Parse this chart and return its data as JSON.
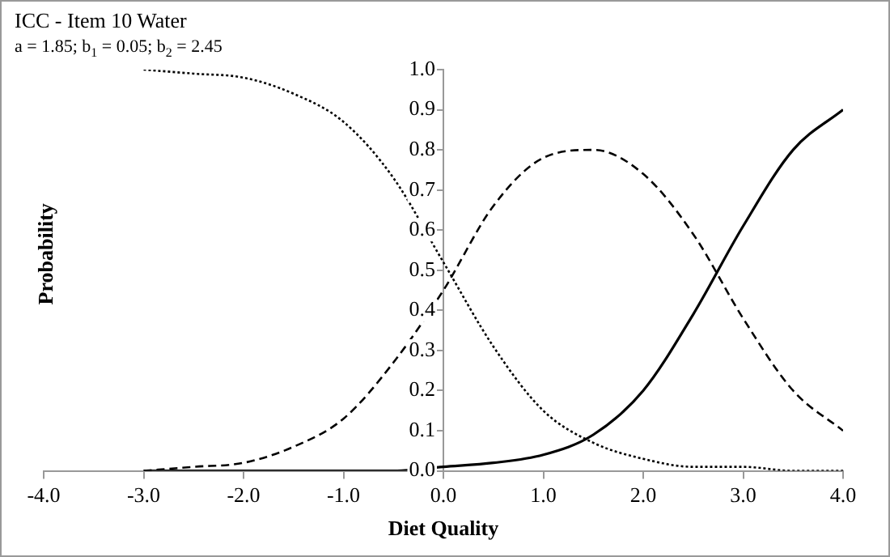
{
  "chart_data": {
    "type": "line",
    "title": "ICC - Item 10  Water",
    "subtitle": "a = 1.85; b$_{1}$ = 0.05; b$_{2}$ = 2.45",
    "xlabel": "Diet Quality",
    "ylabel": "Probability",
    "x": [
      -3,
      -2.5,
      -2,
      -1.5,
      -1,
      -0.5,
      0,
      0.5,
      1,
      1.5,
      2,
      2.5,
      3,
      3.5,
      4
    ],
    "series": [
      {
        "color": "#000000",
        "line_style": "dotted",
        "values": [
          1.0,
          0.99,
          0.98,
          0.94,
          0.87,
          0.73,
          0.52,
          0.31,
          0.15,
          0.07,
          0.03,
          0.01,
          0.01,
          0.0,
          0.0
        ]
      },
      {
        "color": "#000000",
        "line_style": "dashed",
        "values": [
          0.0,
          0.01,
          0.02,
          0.06,
          0.13,
          0.27,
          0.45,
          0.66,
          0.78,
          0.8,
          0.74,
          0.59,
          0.38,
          0.2,
          0.1
        ]
      },
      {
        "color": "#000000",
        "line_style": "solid",
        "values": [
          0.0,
          0.0,
          0.0,
          0.0,
          0.0,
          0.0,
          0.01,
          0.02,
          0.04,
          0.09,
          0.2,
          0.39,
          0.61,
          0.8,
          0.9
        ]
      }
    ],
    "xlim": [
      -4,
      4
    ],
    "xticks": [
      {
        "value": -4,
        "label": "-4.0"
      },
      {
        "value": -3,
        "label": "-3.0"
      },
      {
        "value": -2,
        "label": "-2.0"
      },
      {
        "value": -1,
        "label": "-1.0"
      },
      {
        "value": 0,
        "label": "0.0"
      },
      {
        "value": 1,
        "label": "1.0"
      },
      {
        "value": 2,
        "label": "2.0"
      },
      {
        "value": 3,
        "label": "3.0"
      },
      {
        "value": 4,
        "label": "4.0"
      }
    ],
    "ylim": [
      0,
      1
    ],
    "yticks": [
      {
        "value": 0,
        "label": "0.0"
      },
      {
        "value": 0.1,
        "label": "0.1"
      },
      {
        "value": 0.2,
        "label": "0.2"
      },
      {
        "value": 0.3,
        "label": "0.3"
      },
      {
        "value": 0.4,
        "label": "0.4"
      },
      {
        "value": 0.5,
        "label": "0.5"
      },
      {
        "value": 0.6,
        "label": "0.6"
      },
      {
        "value": 0.7,
        "label": "0.7"
      },
      {
        "value": 0.8,
        "label": "0.8"
      },
      {
        "value": 0.9,
        "label": "0.9"
      },
      {
        "value": 1,
        "label": "1.0"
      }
    ],
    "grid": false,
    "legend": false,
    "marker": "none"
  }
}
